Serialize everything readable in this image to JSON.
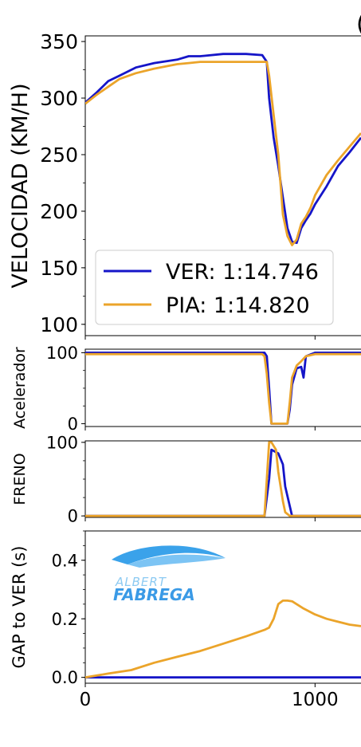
{
  "title_fragment": "(",
  "logo": {
    "line1": "ALBERT",
    "line2": "FABREGA"
  },
  "colors": {
    "VER": "#1515c8",
    "PIA": "#eba42a"
  },
  "chart_data": [
    {
      "type": "line",
      "ylabel": "VELOCIDAD (KM/H)",
      "ylim": [
        90,
        355
      ],
      "yticks": [
        100,
        150,
        200,
        250,
        300,
        350
      ],
      "xlim": [
        0,
        1200
      ],
      "legend": {
        "placement": "lower-left",
        "entries": [
          "VER: 1:14.746",
          "PIA: 1:14.820"
        ]
      },
      "series": [
        {
          "name": "VER: 1:14.746",
          "driver": "VER",
          "x": [
            0,
            50,
            100,
            150,
            220,
            300,
            400,
            450,
            500,
            600,
            700,
            770,
            790,
            800,
            820,
            840,
            860,
            880,
            900,
            920,
            940,
            960,
            980,
            1000,
            1050,
            1100,
            1150,
            1200
          ],
          "y": [
            296,
            305,
            315,
            320,
            327,
            331,
            334,
            337,
            337,
            339,
            339,
            338,
            332,
            300,
            265,
            240,
            212,
            185,
            173,
            172,
            185,
            192,
            198,
            206,
            222,
            240,
            252,
            265
          ]
        },
        {
          "name": "PIA: 1:14.820",
          "driver": "PIA",
          "x": [
            0,
            50,
            100,
            150,
            220,
            300,
            400,
            450,
            500,
            600,
            700,
            770,
            790,
            800,
            820,
            840,
            860,
            880,
            900,
            920,
            940,
            960,
            980,
            1000,
            1050,
            1100,
            1150,
            1200
          ],
          "y": [
            295,
            303,
            310,
            317,
            322,
            326,
            330,
            331,
            332,
            332,
            332,
            332,
            332,
            320,
            285,
            250,
            197,
            178,
            170,
            175,
            189,
            195,
            203,
            214,
            232,
            245,
            257,
            269
          ]
        }
      ]
    },
    {
      "type": "line",
      "ylabel": "Acelerador",
      "ylim": [
        -4,
        105
      ],
      "yticks": [
        0,
        100
      ],
      "xlim": [
        0,
        1200
      ],
      "series": [
        {
          "driver": "VER",
          "x": [
            0,
            700,
            780,
            790,
            800,
            810,
            880,
            890,
            900,
            920,
            940,
            950,
            960,
            1000,
            1200
          ],
          "y": [
            100,
            100,
            100,
            95,
            50,
            0,
            0,
            20,
            55,
            78,
            80,
            65,
            95,
            100,
            100
          ]
        },
        {
          "driver": "PIA",
          "x": [
            0,
            700,
            770,
            780,
            790,
            800,
            810,
            880,
            890,
            900,
            920,
            940,
            960,
            1000,
            1200
          ],
          "y": [
            98,
            98,
            98,
            95,
            70,
            30,
            0,
            0,
            30,
            65,
            82,
            88,
            95,
            98,
            98
          ]
        }
      ]
    },
    {
      "type": "line",
      "ylabel": "FRENO",
      "ylim": [
        -2,
        102
      ],
      "yticks": [
        0,
        100
      ],
      "xlim": [
        0,
        1200
      ],
      "series": [
        {
          "driver": "VER",
          "x": [
            0,
            770,
            780,
            800,
            810,
            840,
            860,
            870,
            900,
            1200
          ],
          "y": [
            0,
            0,
            0,
            50,
            90,
            85,
            70,
            40,
            0,
            0
          ]
        },
        {
          "driver": "PIA",
          "x": [
            0,
            770,
            780,
            800,
            810,
            830,
            840,
            860,
            870,
            890,
            1200
          ],
          "y": [
            0,
            0,
            0,
            100,
            100,
            90,
            60,
            20,
            5,
            0,
            0
          ]
        }
      ]
    },
    {
      "type": "line",
      "ylabel": "GAP to VER (s)",
      "ylim": [
        -0.02,
        0.5
      ],
      "yticks": [
        0.0,
        0.2,
        0.4
      ],
      "ytick_labels": [
        "0.0",
        "0.2",
        "0.4"
      ],
      "xlim": [
        0,
        1200
      ],
      "xticks": [
        0,
        1000
      ],
      "xtick_labels": [
        "0",
        "1000"
      ],
      "series": [
        {
          "driver": "VER",
          "x": [
            0,
            1200
          ],
          "y": [
            0,
            0
          ]
        },
        {
          "driver": "PIA",
          "x": [
            0,
            100,
            200,
            300,
            400,
            500,
            600,
            700,
            780,
            800,
            820,
            840,
            860,
            880,
            900,
            950,
            1000,
            1050,
            1100,
            1150,
            1200
          ],
          "y": [
            0,
            0.013,
            0.025,
            0.05,
            0.07,
            0.09,
            0.115,
            0.14,
            0.162,
            0.17,
            0.2,
            0.25,
            0.262,
            0.262,
            0.26,
            0.235,
            0.215,
            0.2,
            0.19,
            0.18,
            0.175
          ]
        }
      ]
    }
  ]
}
